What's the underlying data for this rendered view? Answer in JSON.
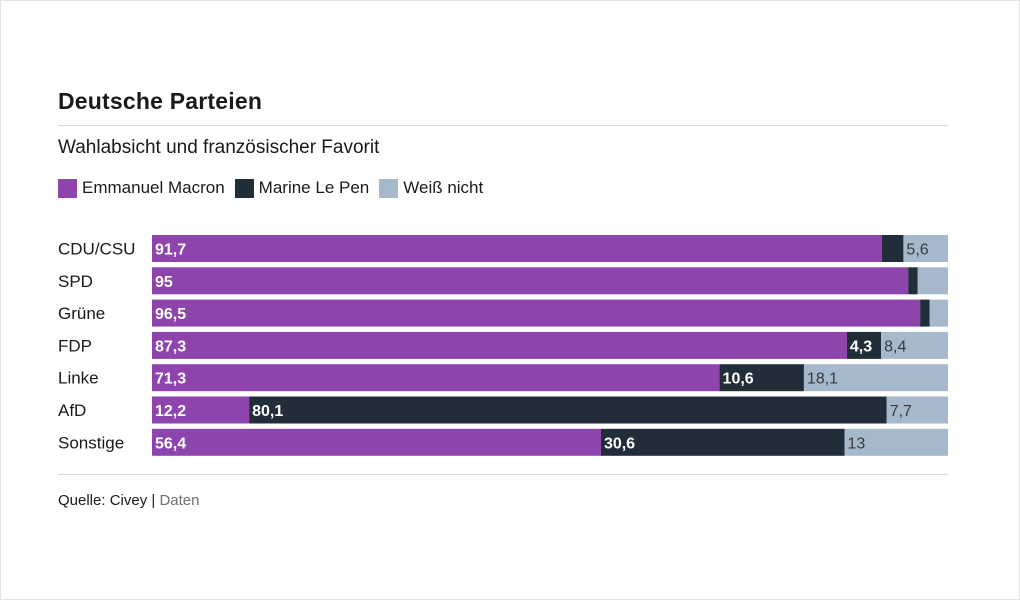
{
  "chart_data": {
    "type": "bar",
    "orientation": "horizontal",
    "stacked": true,
    "title": "Deutsche Parteien",
    "subtitle": "Wahlabsicht und französischer Favorit",
    "xlim": [
      0,
      100
    ],
    "grid": false,
    "legend_position": "top-left",
    "categories": [
      "CDU/CSU",
      "SPD",
      "Grüne",
      "FDP",
      "Linke",
      "AfD",
      "Sonstige"
    ],
    "series": [
      {
        "name": "Emmanuel Macron",
        "color": "#8e44ad",
        "values": [
          91.7,
          95,
          96.5,
          87.3,
          71.3,
          12.2,
          56.4
        ],
        "labels": [
          "91,7",
          "95",
          "96,5",
          "87,3",
          "71,3",
          "12,2",
          "56,4"
        ]
      },
      {
        "name": "Marine Le Pen",
        "color": "#222d3a",
        "values": [
          2.7,
          1.2,
          1.2,
          4.3,
          10.6,
          80.1,
          30.6
        ],
        "labels": [
          "",
          "",
          "",
          "4,3",
          "10,6",
          "80,1",
          "30,6"
        ]
      },
      {
        "name": "Weiß nicht",
        "color": "#a6b8cc",
        "values": [
          5.6,
          3.8,
          2.3,
          8.4,
          18.1,
          7.7,
          13
        ],
        "labels": [
          "5,6",
          "",
          "",
          "8,4",
          "18,1",
          "7,7",
          "13"
        ]
      }
    ]
  },
  "footer": {
    "source": "Quelle: Civey |",
    "link": "Daten"
  }
}
